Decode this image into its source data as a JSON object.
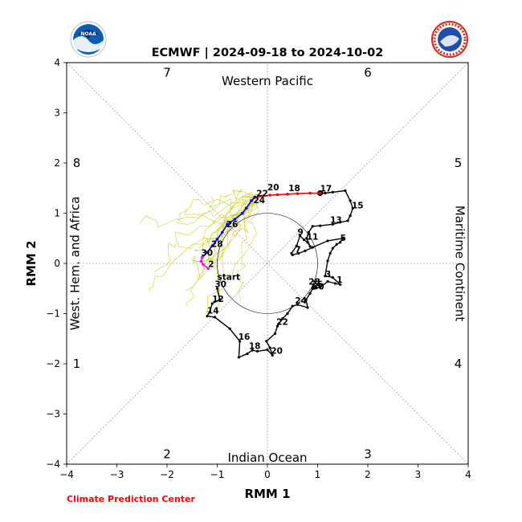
{
  "chart_data": {
    "type": "scatter",
    "title": "ECMWF | 2024-09-18 to 2024-10-02",
    "xlabel": "RMM 1",
    "ylabel": "RMM 2",
    "xlim": [
      -4,
      4
    ],
    "ylim": [
      -4,
      4
    ],
    "xticks": [
      -4,
      -3,
      -2,
      -1,
      0,
      1,
      2,
      3,
      4
    ],
    "yticks": [
      -4,
      -3,
      -2,
      -1,
      0,
      1,
      2,
      3,
      4
    ],
    "xtick_labels": [
      "−4",
      "−3",
      "−2",
      "−1",
      "0",
      "1",
      "2",
      "3",
      "4"
    ],
    "ytick_labels": [
      "−4",
      "−3",
      "−2",
      "−1",
      "0",
      "1",
      "2",
      "3",
      "4"
    ],
    "regions": {
      "top": "Western Pacific",
      "bottom": "Indian Ocean",
      "left": "West. Hem. and Africa",
      "right": "Maritime Continent"
    },
    "phases": [
      {
        "label": "1",
        "x": -3.8,
        "y": -2.0
      },
      {
        "label": "2",
        "x": -2.0,
        "y": -3.8
      },
      {
        "label": "3",
        "x": 2.0,
        "y": -3.8
      },
      {
        "label": "4",
        "x": 3.8,
        "y": -2.0
      },
      {
        "label": "5",
        "x": 3.8,
        "y": 2.0
      },
      {
        "label": "6",
        "x": 2.0,
        "y": 3.8
      },
      {
        "label": "7",
        "x": -2.0,
        "y": 3.8
      },
      {
        "label": "8",
        "x": -3.8,
        "y": 2.0
      }
    ],
    "unit_circle_radius": 1,
    "observed": {
      "color": "#000000",
      "points": [
        [
          -1.0,
          -0.5
        ],
        [
          -0.95,
          -0.72
        ],
        [
          -1.1,
          -0.8
        ],
        [
          -1.15,
          -0.97
        ],
        [
          -1.2,
          -1.05
        ],
        [
          -1.05,
          -1.07
        ],
        [
          -0.75,
          -1.3
        ],
        [
          -0.55,
          -1.55
        ],
        [
          -0.57,
          -1.87
        ],
        [
          -0.4,
          -1.8
        ],
        [
          -0.3,
          -1.73
        ],
        [
          -0.2,
          -1.75
        ],
        [
          0.0,
          -1.72
        ],
        [
          0.1,
          -1.83
        ],
        [
          0.05,
          -1.68
        ],
        [
          -0.02,
          -1.55
        ],
        [
          0.15,
          -1.4
        ],
        [
          0.2,
          -1.25
        ],
        [
          0.3,
          -1.1
        ],
        [
          0.4,
          -1.0
        ],
        [
          0.5,
          -0.85
        ],
        [
          0.6,
          -0.82
        ],
        [
          0.8,
          -0.88
        ],
        [
          0.77,
          -0.72
        ],
        [
          0.85,
          -0.6
        ],
        [
          0.9,
          -0.5
        ],
        [
          0.95,
          -0.46
        ],
        [
          1.0,
          -0.42
        ],
        [
          0.92,
          -0.5
        ],
        [
          1.05,
          -0.48
        ],
        [
          1.2,
          -0.36
        ],
        [
          1.35,
          -0.4
        ],
        [
          1.45,
          -0.42
        ],
        [
          1.3,
          -0.28
        ],
        [
          1.15,
          -0.25
        ],
        [
          1.2,
          0.05
        ],
        [
          1.25,
          0.2
        ],
        [
          1.3,
          0.3
        ],
        [
          1.38,
          0.38
        ],
        [
          1.45,
          0.42
        ],
        [
          1.5,
          0.5
        ],
        [
          1.2,
          0.45
        ],
        [
          0.9,
          0.32
        ],
        [
          0.75,
          0.25
        ],
        [
          0.62,
          0.2
        ],
        [
          0.5,
          0.17
        ],
        [
          0.48,
          0.2
        ],
        [
          0.58,
          0.35
        ],
        [
          0.65,
          0.55
        ],
        [
          0.73,
          0.47
        ],
        [
          0.8,
          0.42
        ],
        [
          0.85,
          0.34
        ],
        [
          0.78,
          0.5
        ],
        [
          0.82,
          0.62
        ],
        [
          0.9,
          0.74
        ],
        [
          1.05,
          0.75
        ],
        [
          1.3,
          0.78
        ],
        [
          1.45,
          0.82
        ],
        [
          1.6,
          0.85
        ],
        [
          1.65,
          0.95
        ],
        [
          1.7,
          1.1
        ],
        [
          1.65,
          1.25
        ],
        [
          1.55,
          1.45
        ],
        [
          1.3,
          1.42
        ],
        [
          1.15,
          1.4
        ],
        [
          1.05,
          1.4
        ]
      ],
      "labels": [
        {
          "text": "start",
          "x": -1.0,
          "y": -0.33
        },
        {
          "text": "30",
          "x": -1.05,
          "y": -0.47
        },
        {
          "text": "12",
          "x": -1.1,
          "y": -0.77
        },
        {
          "text": "14",
          "x": -1.2,
          "y": -1.0
        },
        {
          "text": "16",
          "x": -0.58,
          "y": -1.52
        },
        {
          "text": "18",
          "x": -0.37,
          "y": -1.7
        },
        {
          "text": "20",
          "x": 0.07,
          "y": -1.8
        },
        {
          "text": "22",
          "x": 0.18,
          "y": -1.22
        },
        {
          "text": "24",
          "x": 0.55,
          "y": -0.8
        },
        {
          "text": "26",
          "x": 0.87,
          "y": -0.47
        },
        {
          "text": "28",
          "x": 0.82,
          "y": -0.42
        },
        {
          "text": "30",
          "x": 0.9,
          "y": -0.52
        },
        {
          "text": "1",
          "x": 1.38,
          "y": -0.38
        },
        {
          "text": "3",
          "x": 1.15,
          "y": -0.27
        },
        {
          "text": "5",
          "x": 1.45,
          "y": 0.45
        },
        {
          "text": "7",
          "x": 0.55,
          "y": 0.22
        },
        {
          "text": "9",
          "x": 0.6,
          "y": 0.57
        },
        {
          "text": "11",
          "x": 0.78,
          "y": 0.47
        },
        {
          "text": "13",
          "x": 1.25,
          "y": 0.81
        },
        {
          "text": "15",
          "x": 1.68,
          "y": 1.1
        },
        {
          "text": "17",
          "x": 1.05,
          "y": 1.43
        }
      ]
    },
    "forecast_segments": [
      {
        "color": "#ff0000",
        "points": [
          [
            1.05,
            1.4
          ],
          [
            0.85,
            1.4
          ],
          [
            0.6,
            1.39
          ],
          [
            0.4,
            1.38
          ],
          [
            0.2,
            1.37
          ],
          [
            0.05,
            1.36
          ],
          [
            -0.1,
            1.34
          ],
          [
            -0.25,
            1.32
          ]
        ]
      },
      {
        "color": "#0000ff",
        "points": [
          [
            -0.25,
            1.32
          ],
          [
            -0.32,
            1.25
          ],
          [
            -0.42,
            1.1
          ],
          [
            -0.5,
            1.0
          ],
          [
            -0.65,
            0.88
          ],
          [
            -0.8,
            0.78
          ],
          [
            -0.9,
            0.62
          ],
          [
            -1.0,
            0.48
          ],
          [
            -1.1,
            0.35
          ],
          [
            -1.2,
            0.22
          ],
          [
            -1.3,
            0.12
          ]
        ]
      },
      {
        "color": "#ff00ff",
        "points": [
          [
            -1.3,
            0.12
          ],
          [
            -1.32,
            0.04
          ],
          [
            -1.28,
            -0.02
          ],
          [
            -1.18,
            -0.1
          ]
        ]
      }
    ],
    "forecast_labels": [
      {
        "text": "18",
        "x": 0.42,
        "y": 1.44
      },
      {
        "text": "20",
        "x": 0.0,
        "y": 1.46
      },
      {
        "text": "22",
        "x": -0.22,
        "y": 1.34
      },
      {
        "text": "24",
        "x": -0.28,
        "y": 1.2
      },
      {
        "text": "26",
        "x": -0.82,
        "y": 0.72
      },
      {
        "text": "28",
        "x": -1.12,
        "y": 0.33
      },
      {
        "text": "30",
        "x": -1.32,
        "y": 0.15
      },
      {
        "text": "2",
        "x": -1.18,
        "y": -0.07
      }
    ],
    "ensemble_color": "#c8c800",
    "ensemble_members": 20
  },
  "logos": {
    "left": {
      "text": "NOAA",
      "color": "#0a5fb4"
    },
    "right": {
      "text": "NATIONAL WEATHER SERVICE",
      "color": "#d52b1e"
    }
  },
  "credit": {
    "text": "Climate Prediction Center",
    "color": "#ff0000"
  }
}
